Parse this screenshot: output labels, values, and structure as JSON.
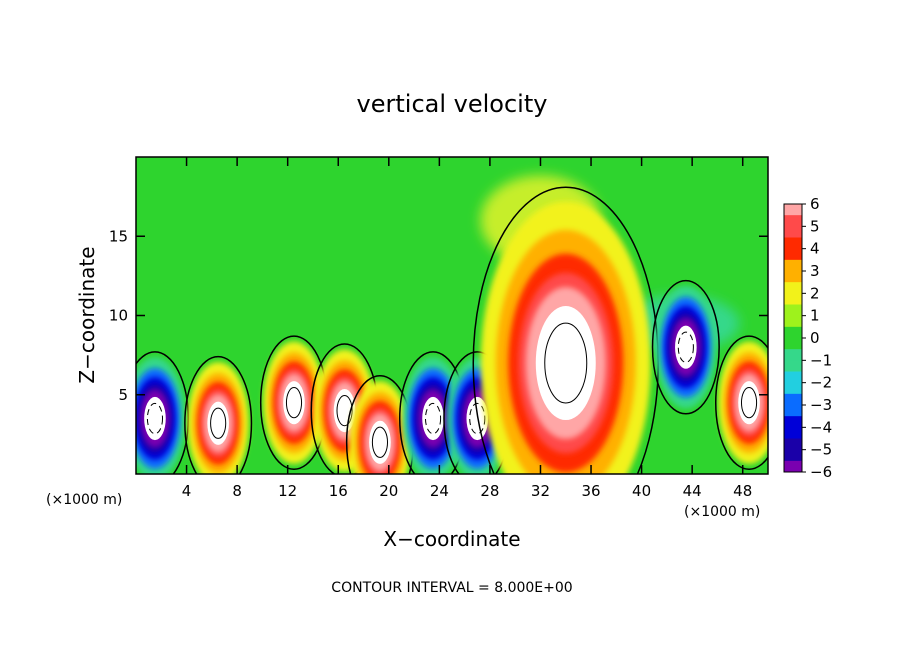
{
  "chart_data": {
    "type": "heatmap",
    "title": "vertical velocity",
    "xlabel": "X−coordinate",
    "ylabel": "Z−coordinate",
    "x_unit_left": "(×1000 m)",
    "x_unit_right": "(×1000 m)",
    "xlim": [
      0,
      50
    ],
    "ylim": [
      0,
      20
    ],
    "x_ticks": [
      4,
      8,
      12,
      16,
      20,
      24,
      28,
      32,
      36,
      40,
      44,
      48
    ],
    "y_ticks": [
      5,
      10,
      15
    ],
    "colorbar": {
      "range": [
        -6,
        6
      ],
      "tick_values": [
        6,
        5,
        4,
        3,
        2,
        1,
        0,
        -1,
        -2,
        -3,
        -4,
        -5,
        -6
      ],
      "tick_labels": [
        "6",
        "5",
        "4",
        "3",
        "2",
        "1",
        "0",
        "−1",
        "−2",
        "−3",
        "−4",
        "−5",
        "−6"
      ]
    },
    "note": "CONTOUR INTERVAL = 8.000E+00",
    "features": [
      {
        "x": 1.5,
        "z": 3.5,
        "sign": "negative"
      },
      {
        "x": 6.5,
        "z": 3.2,
        "sign": "positive"
      },
      {
        "x": 12.5,
        "z": 4.5,
        "sign": "positive"
      },
      {
        "x": 16.5,
        "z": 4.0,
        "sign": "positive"
      },
      {
        "x": 19.3,
        "z": 2.0,
        "sign": "positive"
      },
      {
        "x": 23.5,
        "z": 3.5,
        "sign": "negative"
      },
      {
        "x": 27.0,
        "z": 3.5,
        "sign": "negative"
      },
      {
        "x": 34.0,
        "z": 7.0,
        "sign": "positive"
      },
      {
        "x": 43.5,
        "z": 8.0,
        "sign": "negative"
      },
      {
        "x": 48.5,
        "z": 4.5,
        "sign": "positive"
      }
    ]
  }
}
